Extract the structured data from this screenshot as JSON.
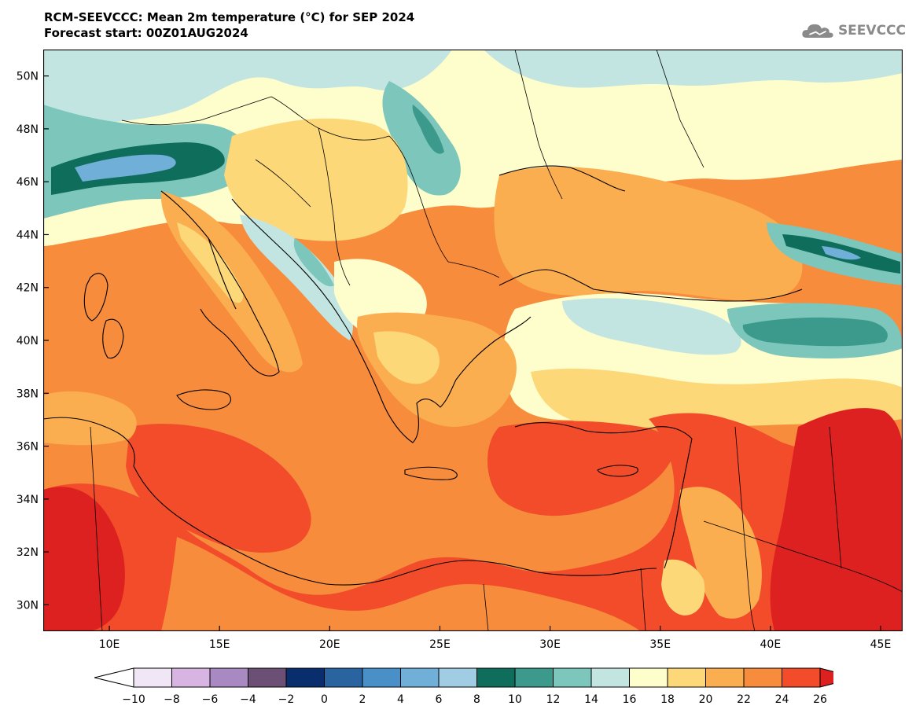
{
  "title": {
    "line1": "RCM-SEEVCCC: Mean 2m temperature (°C) for SEP 2024",
    "line2": "Forecast start: 00Z01AUG2024"
  },
  "logo": {
    "text": "SEEVCCC",
    "icon": "cloud-icon"
  },
  "map": {
    "lon_range": [
      7,
      46
    ],
    "lat_range": [
      29,
      51
    ],
    "lon_ticks": [
      10,
      15,
      20,
      25,
      30,
      35,
      40,
      45
    ],
    "lon_tick_labels": [
      "10E",
      "15E",
      "20E",
      "25E",
      "30E",
      "35E",
      "40E",
      "45E"
    ],
    "lat_ticks": [
      30,
      32,
      34,
      36,
      38,
      40,
      42,
      44,
      46,
      48,
      50
    ],
    "lat_tick_labels": [
      "30N",
      "32N",
      "34N",
      "36N",
      "38N",
      "40N",
      "42N",
      "44N",
      "46N",
      "48N",
      "50N"
    ]
  },
  "legend": {
    "labels": [
      "-10",
      "-8",
      "-6",
      "-4",
      "-2",
      "0",
      "2",
      "4",
      "6",
      "8",
      "10",
      "12",
      "14",
      "16",
      "18",
      "20",
      "22",
      "24",
      "26"
    ],
    "colors": [
      "#f0e6f6",
      "#d8b4e2",
      "#a989c2",
      "#6b4f74",
      "#0a2d6e",
      "#2a64a0",
      "#4a90c8",
      "#70b0d8",
      "#a0cce4",
      "#0f6d5c",
      "#3c9a8c",
      "#7cc6bc",
      "#c3e5e2",
      "#fefdcc",
      "#fdd878",
      "#fbae50",
      "#f78c3c",
      "#f24c2a"
    ],
    "under_color": "#ffffff",
    "over_color": "#dd2020"
  }
}
